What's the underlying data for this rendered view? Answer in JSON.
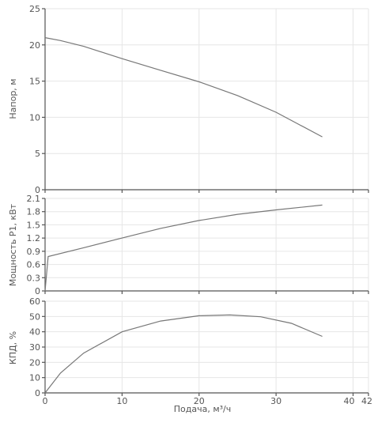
{
  "chart_data": [
    {
      "type": "line",
      "ylabel": "Напор, м",
      "ylim": [
        0,
        25
      ],
      "yticks": [
        "0",
        "5",
        "10",
        "15",
        "20",
        "25"
      ],
      "xlim": [
        0,
        42
      ],
      "grid": true,
      "x": [
        0,
        2,
        5,
        10,
        15,
        20,
        25,
        30,
        33,
        36
      ],
      "values": [
        21.0,
        20.6,
        19.8,
        18.1,
        16.5,
        14.9,
        13.0,
        10.7,
        9.0,
        7.3
      ]
    },
    {
      "type": "line",
      "ylabel": "Мощность P1, кВт",
      "ylim": [
        0,
        2.1
      ],
      "yticks": [
        "0",
        "0.3",
        "0.6",
        "0.9",
        "1.2",
        "1.5",
        "1.8",
        "2.1"
      ],
      "xlim": [
        0,
        42
      ],
      "grid": true,
      "x": [
        0,
        0.4,
        5,
        10,
        15,
        20,
        25,
        30,
        36
      ],
      "values": [
        0,
        0.78,
        0.98,
        1.2,
        1.42,
        1.6,
        1.74,
        1.84,
        1.95
      ]
    },
    {
      "type": "line",
      "ylabel": "КПД, %",
      "xlabel": "Подача, м³/ч",
      "ylim": [
        0,
        60
      ],
      "yticks": [
        "0",
        "10",
        "20",
        "30",
        "40",
        "50",
        "60"
      ],
      "xlim": [
        0,
        42
      ],
      "xticks": [
        "0",
        "10",
        "20",
        "30",
        "40",
        "42"
      ],
      "grid": true,
      "x": [
        0,
        2,
        5,
        10,
        15,
        20,
        24,
        28,
        32,
        36
      ],
      "values": [
        0,
        13,
        26,
        40,
        47,
        50.5,
        51,
        49.8,
        45.5,
        37
      ]
    }
  ]
}
